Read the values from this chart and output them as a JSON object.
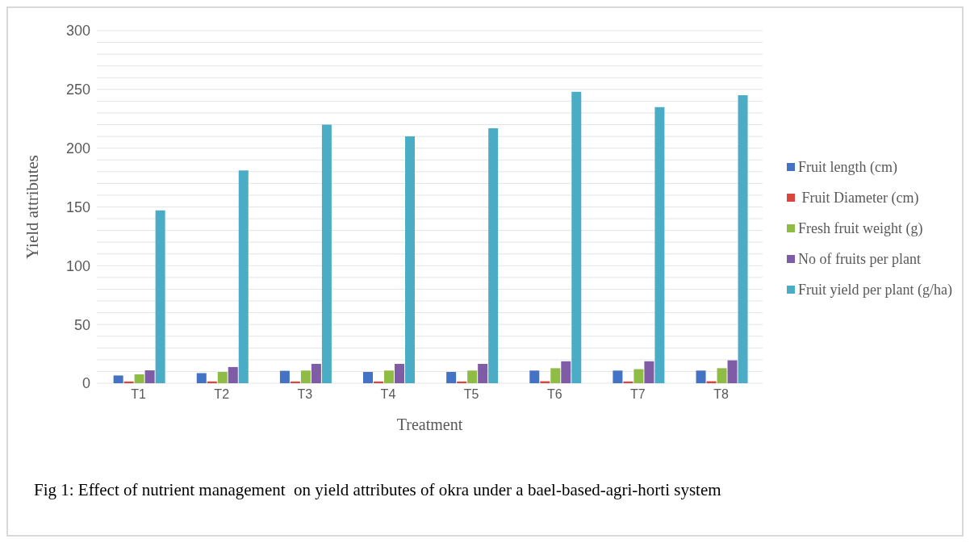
{
  "chart_data": {
    "type": "bar",
    "xlabel": "Treatment",
    "ylabel": "Yield attributes",
    "categories": [
      "T1",
      "T2",
      "T3",
      "T4",
      "T5",
      "T6",
      "T7",
      "T8"
    ],
    "series": [
      {
        "name": "Fruit length (cm)",
        "color": "#4472c4",
        "values": [
          6.6,
          8.6,
          10.6,
          9.6,
          9.6,
          10.8,
          10.8,
          10.8
        ]
      },
      {
        "name": " Fruit Diameter (cm)",
        "color": "#d9463f",
        "values": [
          1.5,
          1.5,
          1.5,
          1.5,
          1.5,
          1.7,
          1.5,
          1.7
        ]
      },
      {
        "name": "Fresh fruit weight (g)",
        "color": "#8fbc45",
        "values": [
          7.6,
          9.6,
          10.8,
          10.8,
          10.8,
          12.8,
          12,
          12.8
        ]
      },
      {
        "name": "No of fruits per plant",
        "color": "#7e5ca6",
        "values": [
          11,
          13.8,
          16.5,
          16.5,
          16.5,
          18.7,
          18.7,
          19.5
        ]
      },
      {
        "name": "Fruit yield per plant (g/ha)",
        "color": "#4bacc6",
        "values": [
          147,
          181,
          220,
          210,
          217,
          248,
          235,
          245
        ]
      }
    ],
    "ylim": [
      0,
      300
    ],
    "yticks": [
      0,
      {
        "value": 10,
        "label": null
      },
      {
        "value": 20,
        "label": null
      },
      {
        "value": 30,
        "label": null
      },
      {
        "value": 40,
        "label": null
      },
      50,
      {
        "value": 60,
        "label": null
      },
      {
        "value": 70,
        "label": null
      },
      {
        "value": 80,
        "label": null
      },
      {
        "value": 90,
        "label": null
      },
      100,
      {
        "value": 110,
        "label": null
      },
      {
        "value": 120,
        "label": null
      },
      {
        "value": 130,
        "label": null
      },
      {
        "value": 140,
        "label": null
      },
      150,
      {
        "value": 160,
        "label": null
      },
      {
        "value": 170,
        "label": null
      },
      {
        "value": 180,
        "label": null
      },
      {
        "value": 190,
        "label": null
      },
      200,
      {
        "value": 210,
        "label": null
      },
      {
        "value": 220,
        "label": null
      },
      {
        "value": 230,
        "label": null
      },
      {
        "value": 240,
        "label": null
      },
      250,
      {
        "value": 260,
        "label": null
      },
      {
        "value": 270,
        "label": null
      },
      {
        "value": 280,
        "label": null
      },
      {
        "value": 290,
        "label": null
      },
      300
    ],
    "grid": "y",
    "legend": "right",
    "annotations": [
      "Fig 1: Effect of nutrient management  on yield attributes of okra under a bael-based-agri-horti system"
    ]
  }
}
